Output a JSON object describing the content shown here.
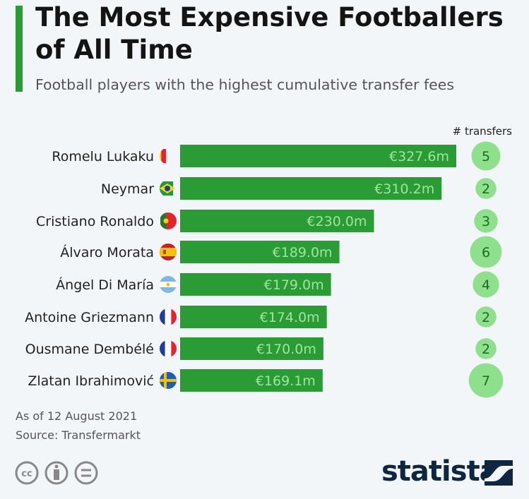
{
  "chart_data": {
    "type": "bar",
    "orientation": "horizontal",
    "title": "The Most Expensive Footballers of All Time",
    "subtitle": "Football players with the highest cumulative transfer fees",
    "extra_column_label": "# transfers",
    "categories": [
      "Romelu Lukaku",
      "Neymar",
      "Cristiano Ronaldo",
      "Álvaro Morata",
      "Ángel Di María",
      "Antoine Griezmann",
      "Ousmane Dembélé",
      "Zlatan Ibrahimović"
    ],
    "values": [
      327.6,
      310.2,
      230.0,
      189.0,
      179.0,
      174.0,
      170.0,
      169.1
    ],
    "value_labels": [
      "€327.6m",
      "€310.2m",
      "€230.0m",
      "€189.0m",
      "€179.0m",
      "€174.0m",
      "€170.0m",
      "€169.1m"
    ],
    "transfers": [
      5,
      2,
      3,
      6,
      4,
      2,
      2,
      7
    ],
    "flags": [
      "belgium-flag",
      "brazil-flag",
      "portugal-flag",
      "spain-flag",
      "argentina-flag",
      "france-flag",
      "france-flag",
      "sweden-flag"
    ],
    "unit": "€ million",
    "colors": {
      "bar": "#2b9b36",
      "bar_label": "#9fe59e",
      "circle": "#8fe08c",
      "circle_text": "#1d6b22"
    }
  },
  "footer": {
    "note": "As of 12 August 2021",
    "source": "Source: Transfermarkt",
    "logo": "statista"
  }
}
